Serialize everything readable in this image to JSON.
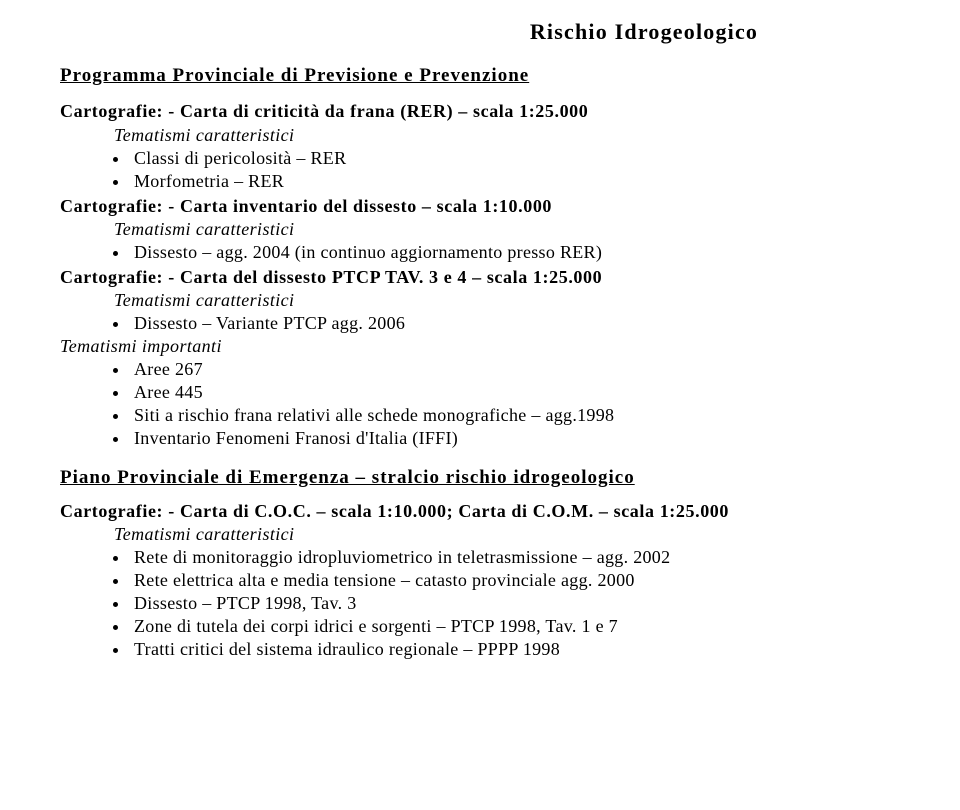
{
  "title": "Rischio Idrogeologico",
  "programma": {
    "heading": "Programma Provinciale di Previsione e Prevenzione",
    "c1": "Cartografie: - Carta di criticità da frana (RER) – scala 1:25.000",
    "tc1": "Tematismi caratteristici",
    "b1a": "Classi di pericolosità – RER",
    "b1b": "Morfometria – RER",
    "c2": "Cartografie: - Carta inventario del dissesto – scala 1:10.000",
    "tc2": "Tematismi caratteristici",
    "b2a": "Dissesto – agg. 2004 (in continuo aggiornamento presso RER)",
    "c3": "Cartografie: - Carta del dissesto PTCP  TAV. 3 e 4 – scala 1:25.000",
    "tc3": "Tematismi caratteristici",
    "b3a": "Dissesto – Variante PTCP agg. 2006",
    "ti": "Tematismi importanti",
    "b4a": "Aree 267",
    "b4b": "Aree 445",
    "b4c": " Siti a rischio frana relativi alle schede monografiche – agg.1998",
    "b4d": "Inventario Fenomeni Franosi d'Italia (IFFI)"
  },
  "piano": {
    "heading": "Piano Provinciale di Emergenza – stralcio rischio idrogeologico",
    "c1": "Cartografie: - Carta di C.O.C. – scala 1:10.000; Carta di C.O.M. – scala 1:25.000",
    "tc1": "Tematismi caratteristici",
    "b1": "Rete di monitoraggio idropluviometrico in teletrasmissione – agg.  2002",
    "b2": "Rete elettrica alta e media tensione – catasto provinciale agg. 2000",
    "b3": "Dissesto – PTCP 1998, Tav. 3",
    "b4": "Zone di tutela dei corpi idrici e sorgenti – PTCP 1998, Tav. 1 e 7",
    "b5": "Tratti critici del sistema idraulico regionale – PPPP 1998"
  }
}
